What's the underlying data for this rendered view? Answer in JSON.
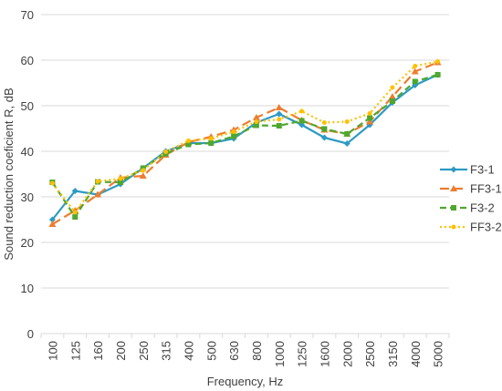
{
  "chart_data": {
    "type": "line",
    "xlabel": "Frequency, Hz",
    "ylabel": "Sound reduction coeficient R, dB",
    "ylim": [
      0,
      70
    ],
    "yticks": [
      "0",
      "10",
      "20",
      "30",
      "40",
      "50",
      "60",
      "70"
    ],
    "grid": "horizontal",
    "legend_position": "right",
    "categories": [
      "100",
      "125",
      "160",
      "200",
      "250",
      "315",
      "400",
      "500",
      "630",
      "800",
      "1000",
      "1250",
      "1600",
      "2000",
      "2500",
      "3150",
      "4000",
      "5000"
    ],
    "series": [
      {
        "name": "F3-1",
        "color": "#2E9AC4",
        "dash": "solid",
        "marker": "diamond",
        "values": [
          25.0,
          31.3,
          30.5,
          32.8,
          36.3,
          40.0,
          41.8,
          41.8,
          42.8,
          46.3,
          48.2,
          45.8,
          43.0,
          41.7,
          45.8,
          50.7,
          54.5,
          56.8
        ]
      },
      {
        "name": "FF3-1",
        "color": "#ED7D31",
        "dash": "longdash",
        "marker": "triangle",
        "values": [
          24.0,
          27.0,
          30.5,
          34.2,
          34.6,
          39.2,
          42.0,
          43.2,
          44.7,
          47.4,
          49.6,
          46.8,
          44.7,
          43.8,
          46.5,
          52.0,
          57.5,
          59.5
        ]
      },
      {
        "name": "F3-2",
        "color": "#4EA72E",
        "dash": "dash",
        "marker": "square",
        "values": [
          33.2,
          25.6,
          33.3,
          33.2,
          36.3,
          39.5,
          41.5,
          41.8,
          43.3,
          45.7,
          45.6,
          46.7,
          44.9,
          43.8,
          47.3,
          51.0,
          55.3,
          56.8
        ]
      },
      {
        "name": "FF3-2",
        "color": "#FFC000",
        "dash": "dot",
        "marker": "circle",
        "values": [
          33.0,
          26.6,
          33.4,
          34.0,
          35.8,
          39.9,
          42.3,
          42.8,
          44.3,
          46.5,
          47.0,
          48.8,
          46.3,
          46.5,
          48.3,
          54.0,
          58.7,
          59.7
        ]
      }
    ]
  }
}
